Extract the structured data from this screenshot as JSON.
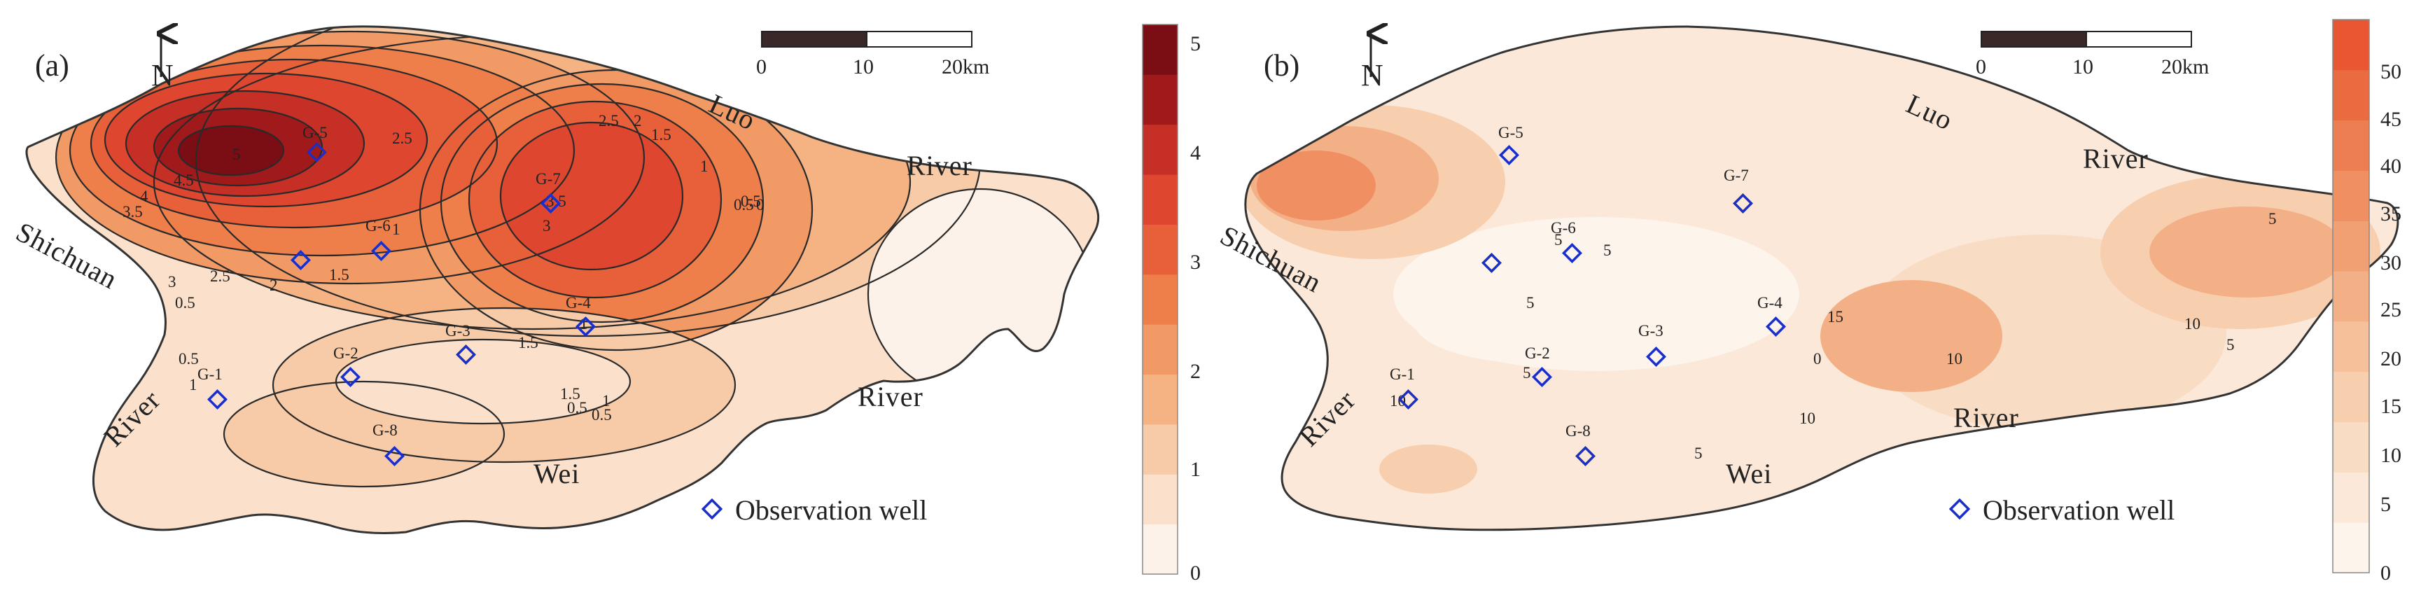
{
  "panels": [
    {
      "id": "a",
      "label": "(a)",
      "north": "N",
      "scalebar": [
        "0",
        "10",
        "20km"
      ],
      "colorbar": {
        "ticks": [
          "5",
          "4",
          "3",
          "2",
          "1",
          "0"
        ],
        "colors": [
          "#fdf2e9",
          "#fbe1cc",
          "#f8cba8",
          "#f5b384",
          "#f29a66",
          "#ee7f4a",
          "#e8603a",
          "#de4630",
          "#c62f25",
          "#a01a1c",
          "#7a0e14"
        ]
      },
      "place_labels": [
        "Luo",
        "River",
        "Shichuan",
        "River",
        "River",
        "Wei"
      ],
      "contour_labels": [
        "5",
        "4.5",
        "4",
        "3.5",
        "3",
        "2.5",
        "2.5",
        "2",
        "1.5",
        "1",
        "1",
        "0.5",
        "3.5",
        "3",
        "2.5",
        "2",
        "1.5",
        "1",
        "0.5",
        "0",
        "0.5",
        "1",
        "1.5",
        "0.5",
        "1",
        "0.5",
        "1.5",
        "0.5"
      ],
      "wells": [
        "G-5",
        "G-6",
        "G-7",
        "G-4",
        "G-3",
        "G-2",
        "G-1",
        "G-8"
      ],
      "legend": "Observation well"
    },
    {
      "id": "b",
      "label": "(b)",
      "north": "N",
      "scalebar": [
        "0",
        "10",
        "20km"
      ],
      "colorbar": {
        "ticks": [
          "50",
          "45",
          "40",
          "35",
          "30",
          "25",
          "20",
          "15",
          "10",
          "5",
          "0"
        ],
        "colors": [
          "#fdf4ec",
          "#fbe8d8",
          "#f9dcc4",
          "#f7ceae",
          "#f5c09a",
          "#f3b087",
          "#f1a074",
          "#ef8f62",
          "#ed7e51",
          "#eb6b41",
          "#e85632"
        ]
      },
      "place_labels": [
        "Luo",
        "River",
        "Shichuan",
        "River",
        "River",
        "Wei"
      ],
      "contour_labels": [
        "5",
        "5",
        "5",
        "5",
        "10",
        "15",
        "10",
        "5",
        "10",
        "5",
        "0",
        "10",
        "5"
      ],
      "wells": [
        "G-5",
        "G-6",
        "G-7",
        "G-4",
        "G-3",
        "G-2",
        "G-1",
        "G-8"
      ],
      "legend": "Observation well"
    }
  ]
}
